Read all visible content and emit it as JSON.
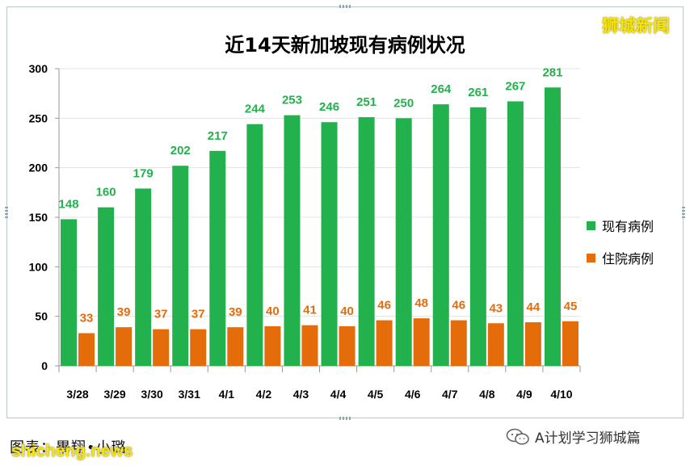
{
  "brand": "狮城新闻",
  "credit": "图表：畢翔•小璐",
  "watermark": "shicheng.news",
  "wechat": {
    "icon": "wechat-icon",
    "label": "A计划学习狮城篇"
  },
  "colors": {
    "series1": "#22b14c",
    "series2": "#e46c0a",
    "brand": "#f7e600"
  },
  "chart_data": {
    "type": "bar",
    "title": "近14天新加坡现有病例状况",
    "xlabel": "",
    "ylabel": "",
    "ylim": [
      0,
      300
    ],
    "yticks": [
      0,
      50,
      100,
      150,
      200,
      250,
      300
    ],
    "grid": true,
    "legend": "right",
    "categories": [
      "3/28",
      "3/29",
      "3/30",
      "3/31",
      "4/1",
      "4/2",
      "4/3",
      "4/4",
      "4/5",
      "4/6",
      "4/7",
      "4/8",
      "4/9",
      "4/10"
    ],
    "series": [
      {
        "name": "现有病例",
        "values": [
          148,
          160,
          179,
          202,
          217,
          244,
          253,
          246,
          251,
          250,
          264,
          261,
          267,
          281
        ]
      },
      {
        "name": "住院病例",
        "values": [
          33,
          39,
          37,
          37,
          39,
          40,
          41,
          40,
          46,
          48,
          46,
          43,
          44,
          45
        ]
      }
    ]
  }
}
